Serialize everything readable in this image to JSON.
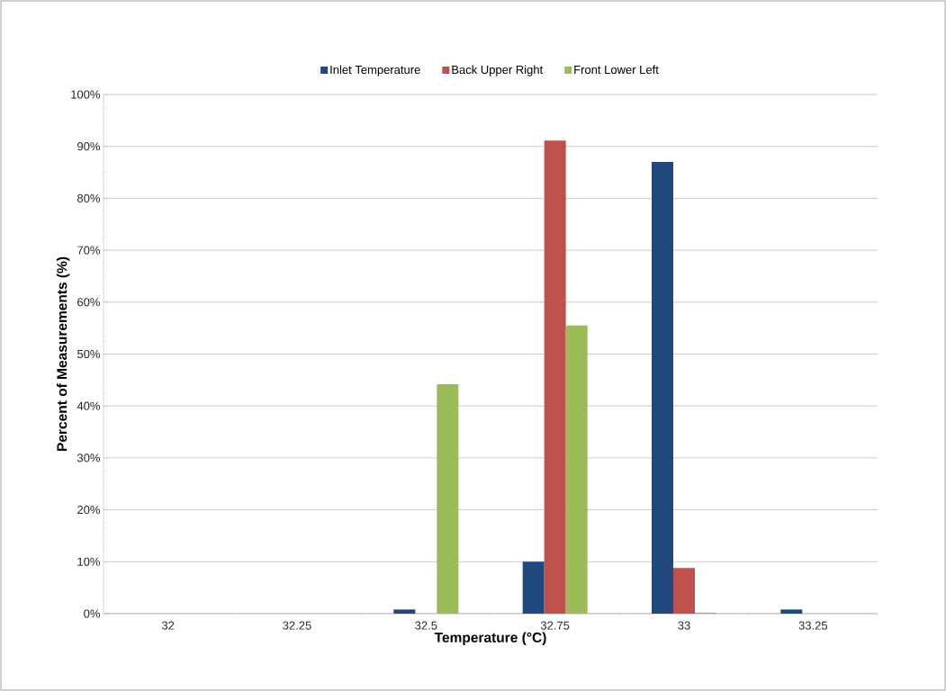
{
  "chart_data": {
    "type": "bar",
    "xlabel": "Temperature (°C)",
    "ylabel": "Percent of Measurements (%)",
    "categories": [
      "32",
      "32.25",
      "32.5",
      "32.75",
      "33",
      "33.25"
    ],
    "series": [
      {
        "name": "Inlet Temperature",
        "color": "#1f497d",
        "values": [
          0,
          0,
          0.8,
          10,
          87,
          0.8
        ]
      },
      {
        "name": "Back Upper Right",
        "color": "#c0504d",
        "values": [
          0,
          0,
          0,
          91.1,
          8.8,
          0
        ]
      },
      {
        "name": "Front Lower Left",
        "color": "#9bbb59",
        "values": [
          0,
          0,
          44.2,
          55.5,
          0.2,
          0
        ]
      }
    ],
    "ylim": [
      0,
      100
    ],
    "yticks": [
      {
        "value": 0,
        "label": "0%"
      },
      {
        "value": 10,
        "label": "10%"
      },
      {
        "value": 20,
        "label": "20%"
      },
      {
        "value": 30,
        "label": "30%"
      },
      {
        "value": 40,
        "label": "40%"
      },
      {
        "value": 50,
        "label": "50%"
      },
      {
        "value": 60,
        "label": "60%"
      },
      {
        "value": 70,
        "label": "70%"
      },
      {
        "value": 80,
        "label": "80%"
      },
      {
        "value": 90,
        "label": "90%"
      },
      {
        "value": 100,
        "label": "100%"
      }
    ],
    "grid": "y",
    "legend": "top"
  }
}
